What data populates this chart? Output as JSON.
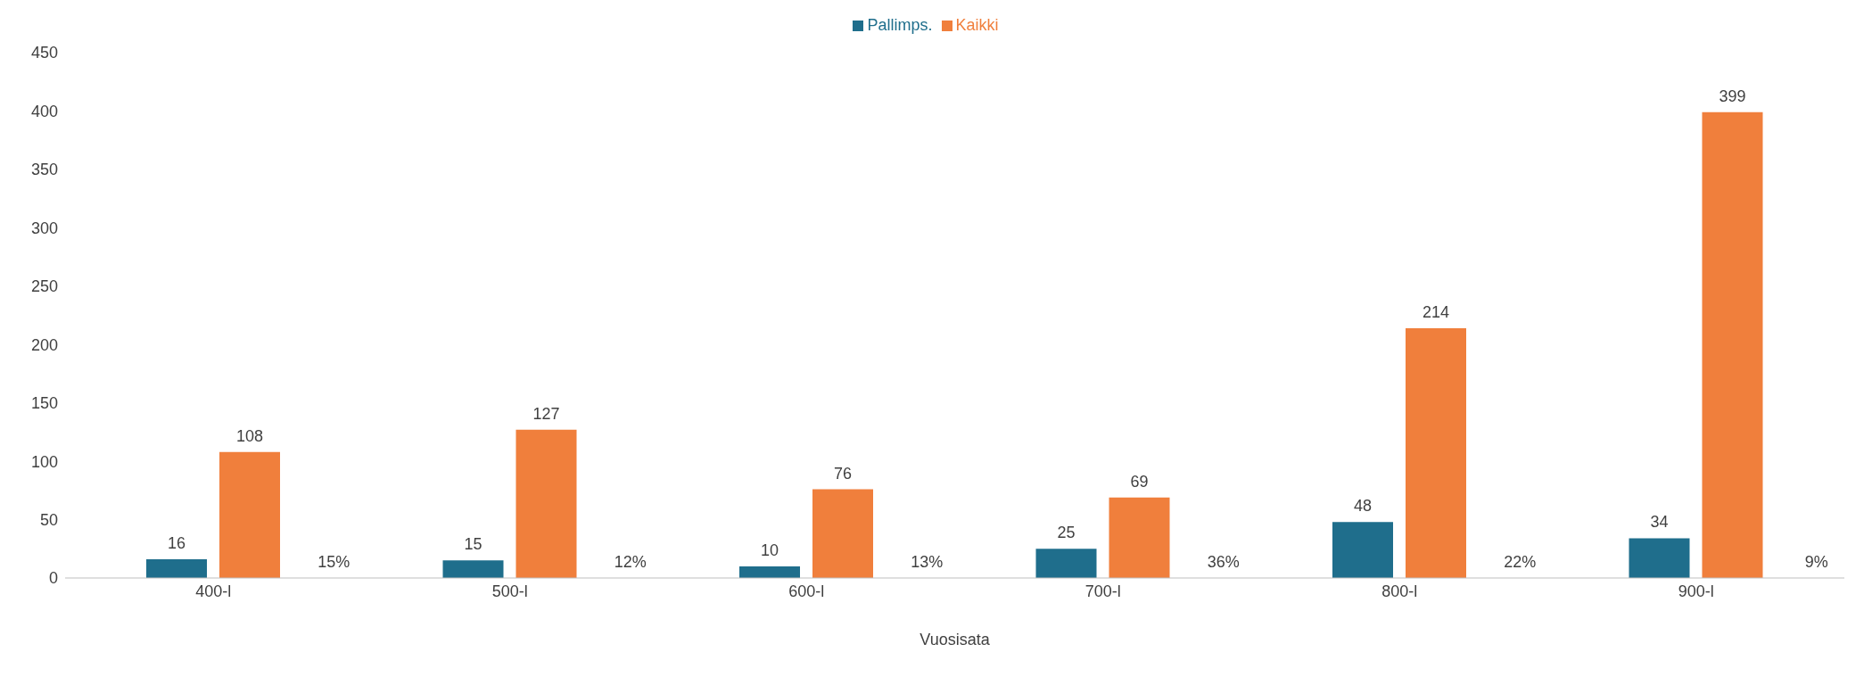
{
  "chart_data": {
    "type": "bar",
    "xlabel": "Vuosisata",
    "categories": [
      "400-l",
      "500-l",
      "600-l",
      "700-l",
      "800-l",
      "900-l"
    ],
    "series": [
      {
        "name": "Pallimps.",
        "color": "#1f6e8c",
        "values": [
          16,
          15,
          10,
          25,
          48,
          34
        ]
      },
      {
        "name": "Kaikki",
        "color": "#f07f3c",
        "values": [
          108,
          127,
          76,
          69,
          214,
          399
        ]
      }
    ],
    "annotations": [
      "15%",
      "12%",
      "13%",
      "36%",
      "22%",
      "9%"
    ],
    "ylim": [
      0,
      450
    ],
    "yticks": [
      0,
      50,
      100,
      150,
      200,
      250,
      300,
      350,
      400,
      450
    ],
    "grid": false,
    "legend": "top",
    "data_labels": true
  }
}
